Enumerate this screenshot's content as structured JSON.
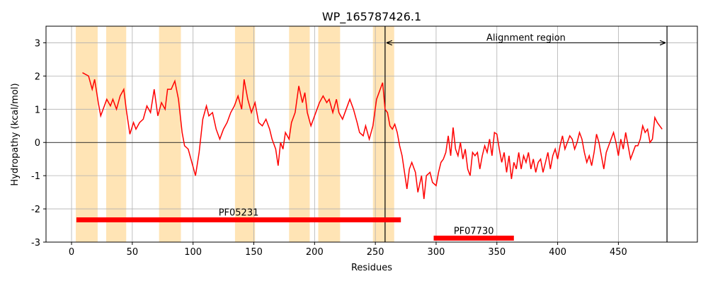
{
  "chart_data": {
    "type": "line",
    "title": "WP_165787426.1",
    "x_label": "Residues",
    "y_label": "Hydropathy (kcal/mol)",
    "xlim": [
      -21,
      515
    ],
    "ylim": [
      -3,
      3.5
    ],
    "xticks": [
      0,
      50,
      100,
      150,
      200,
      250,
      300,
      350,
      400,
      450
    ],
    "yticks": [
      -3,
      -2,
      -1,
      0,
      1,
      2,
      3
    ],
    "grid": true,
    "color": "#ff0000",
    "zero_line": 0,
    "x": [
      9,
      14,
      17,
      19,
      22,
      24,
      29,
      32,
      34,
      37,
      40,
      43,
      45,
      48,
      51,
      53,
      56,
      59,
      62,
      65,
      68,
      71,
      74,
      77,
      79,
      82,
      85,
      88,
      91,
      93,
      96,
      99,
      102,
      105,
      108,
      111,
      113,
      116,
      119,
      122,
      125,
      128,
      131,
      134,
      137,
      140,
      142,
      145,
      148,
      151,
      154,
      157,
      160,
      163,
      165,
      168,
      170,
      172,
      174,
      176,
      179,
      181,
      184,
      187,
      190,
      192,
      194,
      197,
      199,
      202,
      204,
      207,
      210,
      212,
      215,
      218,
      220,
      223,
      226,
      229,
      232,
      235,
      237,
      240,
      242,
      245,
      248,
      251,
      254,
      256,
      258,
      260,
      262,
      264,
      266,
      268,
      270,
      272,
      274,
      276,
      278,
      280,
      283,
      285,
      288,
      290,
      292,
      295,
      297,
      300,
      302,
      304,
      306,
      308,
      310,
      312,
      314,
      316,
      318,
      320,
      322,
      324,
      326,
      328,
      330,
      332,
      334,
      336,
      338,
      340,
      342,
      344,
      346,
      348,
      350,
      352,
      354,
      356,
      358,
      360,
      362,
      364,
      366,
      368,
      370,
      372,
      374,
      376,
      378,
      380,
      382,
      384,
      386,
      388,
      390,
      392,
      394,
      396,
      398,
      400,
      402,
      404,
      406,
      408,
      410,
      412,
      414,
      416,
      418,
      420,
      422,
      424,
      426,
      428,
      430,
      432,
      434,
      436,
      438,
      440,
      442,
      444,
      446,
      448,
      450,
      452,
      454,
      456,
      458,
      460,
      462,
      464,
      466,
      468,
      470,
      472,
      474,
      476,
      478,
      480,
      482,
      484,
      486
    ],
    "values": [
      2.1,
      2.0,
      1.6,
      1.9,
      1.2,
      0.8,
      1.3,
      1.1,
      1.3,
      1.0,
      1.4,
      1.6,
      1.0,
      0.25,
      0.6,
      0.4,
      0.6,
      0.7,
      1.1,
      0.9,
      1.6,
      0.8,
      1.2,
      1.0,
      1.6,
      1.6,
      1.85,
      1.3,
      0.3,
      -0.1,
      -0.2,
      -0.6,
      -1.0,
      -0.3,
      0.7,
      1.1,
      0.8,
      0.9,
      0.4,
      0.1,
      0.4,
      0.6,
      0.9,
      1.1,
      1.4,
      1.0,
      1.9,
      1.3,
      0.9,
      1.2,
      0.6,
      0.5,
      0.7,
      0.4,
      0.1,
      -0.2,
      -0.7,
      0.0,
      -0.2,
      0.3,
      0.1,
      0.6,
      0.9,
      1.7,
      1.2,
      1.5,
      0.9,
      0.5,
      0.7,
      1.0,
      1.2,
      1.4,
      1.2,
      1.3,
      0.9,
      1.3,
      0.9,
      0.7,
      1.0,
      1.3,
      1.0,
      0.6,
      0.3,
      0.2,
      0.5,
      0.1,
      0.5,
      1.3,
      1.6,
      1.8,
      1.0,
      0.9,
      0.5,
      0.4,
      0.55,
      0.3,
      -0.1,
      -0.4,
      -0.9,
      -1.4,
      -0.8,
      -0.6,
      -0.9,
      -1.5,
      -1.0,
      -1.7,
      -1.0,
      -0.9,
      -1.2,
      -1.3,
      -0.9,
      -0.6,
      -0.5,
      -0.3,
      0.2,
      -0.4,
      0.45,
      -0.2,
      -0.4,
      0.0,
      -0.5,
      -0.2,
      -0.8,
      -1.0,
      -0.3,
      -0.4,
      -0.3,
      -0.8,
      -0.4,
      -0.1,
      -0.3,
      0.1,
      -0.4,
      0.3,
      0.25,
      -0.2,
      -0.6,
      -0.3,
      -0.9,
      -0.4,
      -1.1,
      -0.6,
      -0.8,
      -0.3,
      -0.8,
      -0.4,
      -0.6,
      -0.3,
      -0.8,
      -0.5,
      -0.9,
      -0.6,
      -0.5,
      -0.9,
      -0.6,
      -0.3,
      -0.8,
      -0.4,
      -0.2,
      -0.5,
      -0.1,
      0.2,
      -0.2,
      0.0,
      0.2,
      0.1,
      -0.2,
      0.0,
      0.3,
      0.1,
      -0.3,
      -0.6,
      -0.4,
      -0.7,
      -0.3,
      0.25,
      0.0,
      -0.4,
      -0.8,
      -0.3,
      -0.1,
      0.1,
      0.3,
      0.0,
      -0.4,
      0.1,
      -0.2,
      0.3,
      -0.1,
      -0.5,
      -0.3,
      -0.1,
      -0.1,
      0.1,
      0.5,
      0.3,
      0.4,
      0.0,
      0.1,
      0.75,
      0.6,
      0.5,
      0.4
    ],
    "regions": [
      [
        3.5,
        21.5
      ],
      [
        28.5,
        45
      ],
      [
        72,
        90
      ],
      [
        134.5,
        151
      ],
      [
        179,
        196
      ],
      [
        203,
        221
      ],
      [
        248,
        265.5
      ]
    ],
    "region_color": "#ffe4b5",
    "domains": [
      {
        "name": "PF05231",
        "start": 4,
        "end": 271,
        "y": -2.33
      },
      {
        "name": "PF07730",
        "start": 298,
        "end": 364,
        "y": -2.88
      }
    ],
    "domain_color": "#ff0000",
    "alignment_region": {
      "label": "Alignment region",
      "start": 258,
      "end": 490,
      "y": 3
    }
  }
}
